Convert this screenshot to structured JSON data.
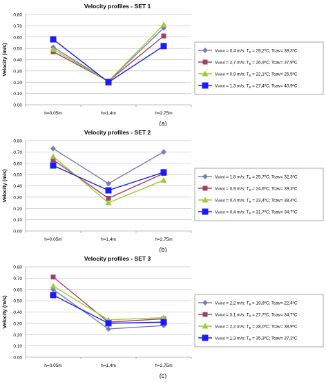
{
  "chart_data": [
    {
      "type": "line",
      "title": "Velocity profiles - SET 1",
      "ylabel": "Velocity (m/s)",
      "xlabel": "",
      "categories": [
        "h=0,05m",
        "h=1,4m",
        "h=2,75m"
      ],
      "ylim": [
        0,
        0.8
      ],
      "yticks": [
        "0.00",
        "0.10",
        "0.20",
        "0.30",
        "0.40",
        "0.50",
        "0.60",
        "0.70",
        "0.80"
      ],
      "grid": true,
      "legend_position": "right",
      "caption": "(a)",
      "series": [
        {
          "name": "Vwind = 0,4 m/s; Te = 29,2ºC; Tcav= 39,3ºC",
          "name_parts": {
            "v": "0,4",
            "te": "29,2",
            "tcav": "39,3"
          },
          "values": [
            0.51,
            0.21,
            0.68
          ],
          "color": "#7b7bb5",
          "marker": "diamond"
        },
        {
          "name": "Vwind = 2,7 m/s; Te = 26,9ºC; Tcav= 37,9ºC",
          "name_parts": {
            "v": "2,7",
            "te": "26,9",
            "tcav": "37,9"
          },
          "values": [
            0.47,
            0.21,
            0.61
          ],
          "color": "#a14065",
          "marker": "square"
        },
        {
          "name": "Vwind = 0,9 m/s; Te = 22,1ºC; Tcav= 25,5ºC",
          "name_parts": {
            "v": "0,9",
            "te": "22,1",
            "tcav": "25,5"
          },
          "values": [
            0.49,
            0.21,
            0.71
          ],
          "color": "#9acd32",
          "marker": "triangle"
        },
        {
          "name": "Vwind = 1,3 m/s; Te = 27,4ºC; Tcav= 40,9ºC",
          "name_parts": {
            "v": "1,3",
            "te": "27,4",
            "tcav": "40,9"
          },
          "values": [
            0.58,
            0.2,
            0.52
          ],
          "color": "#1a1aff",
          "marker": "square-big"
        }
      ]
    },
    {
      "type": "line",
      "title": "Velocity profiles - SET 2",
      "ylabel": "Velocity (m/s)",
      "xlabel": "",
      "categories": [
        "h=0,05m",
        "h=1,4m",
        "h=2,75m"
      ],
      "ylim": [
        0,
        0.8
      ],
      "yticks": [
        "0.00",
        "0.10",
        "0.20",
        "0.30",
        "0.40",
        "0.50",
        "0.60",
        "0.70",
        "0.80"
      ],
      "grid": true,
      "legend_position": "right",
      "caption": "(b)",
      "series": [
        {
          "name": "Vwind = 1,8 m/s; Te = 25,7ºC; Tcav= 32,3ºC",
          "name_parts": {
            "v": "1,8",
            "te": "25,7",
            "tcav": "32,3"
          },
          "values": [
            0.73,
            0.42,
            0.7
          ],
          "color": "#7b7bb5",
          "marker": "diamond"
        },
        {
          "name": "Vwind = 0,9 m/s; Te = 24,6ºC; Tcav= 39,3ºC",
          "name_parts": {
            "v": "0,9",
            "te": "24,6",
            "tcav": "39,3"
          },
          "values": [
            0.63,
            0.29,
            0.51
          ],
          "color": "#a14065",
          "marker": "square"
        },
        {
          "name": "Vwind = 0,4 m/s; Te = 23,4ºC; Tcav= 38,4ºC",
          "name_parts": {
            "v": "0,4",
            "te": "23,4",
            "tcav": "38,4"
          },
          "values": [
            0.66,
            0.25,
            0.45
          ],
          "color": "#9acd32",
          "marker": "triangle"
        },
        {
          "name": "Vwind = 0,4 m/s; Te = 31,7ºC; Tcav= 34,7ºC",
          "name_parts": {
            "v": "0,4",
            "te": "31,7",
            "tcav": "34,7"
          },
          "values": [
            0.58,
            0.36,
            0.52
          ],
          "color": "#1a1aff",
          "marker": "square-big"
        }
      ]
    },
    {
      "type": "line",
      "title": "Velocity profiles - SET 3",
      "ylabel": "Velocity (m/s)",
      "xlabel": "",
      "categories": [
        "h=0,05m",
        "h=1,4m",
        "h=2,75m"
      ],
      "ylim": [
        0,
        0.8
      ],
      "yticks": [
        "0.00",
        "0.10",
        "0.20",
        "0.30",
        "0.40",
        "0.50",
        "0.60",
        "0.70",
        "0.80"
      ],
      "grid": true,
      "legend_position": "right",
      "caption": "(c)",
      "series": [
        {
          "name": "Vwind = 2,2 m/s; Te = 19,8ºC; Tcav= 22,4ºC",
          "name_parts": {
            "v": "2,2",
            "te": "19,8",
            "tcav": "22,4"
          },
          "values": [
            0.6,
            0.25,
            0.28
          ],
          "color": "#7b7bb5",
          "marker": "diamond"
        },
        {
          "name": "Vwind = 3,1 m/s; Te = 27,7ºC; Tcav= 34,7ºC",
          "name_parts": {
            "v": "3,1",
            "te": "27,7",
            "tcav": "34,7"
          },
          "values": [
            0.71,
            0.31,
            0.34
          ],
          "color": "#a14065",
          "marker": "square"
        },
        {
          "name": "Vwind = 2,2 m/s; Te = 28,0ºC; Tcav= 38,9ºC",
          "name_parts": {
            "v": "2,2",
            "te": "28,0",
            "tcav": "38,9"
          },
          "values": [
            0.63,
            0.33,
            0.35
          ],
          "color": "#9acd32",
          "marker": "triangle"
        },
        {
          "name": "Vwind = 1,3 m/s; Te = 35,3ºC; Tcav= 37,2ºC",
          "name_parts": {
            "v": "1,3",
            "te": "35,3",
            "tcav": "37,2"
          },
          "values": [
            0.55,
            0.3,
            0.31
          ],
          "color": "#1a1aff",
          "marker": "square-big"
        }
      ]
    }
  ]
}
